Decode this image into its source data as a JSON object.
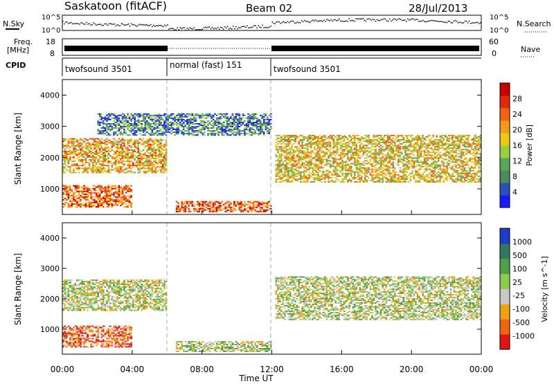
{
  "header": {
    "station": "Saskatoon (fitACF)",
    "beam": "Beam 02",
    "date": "28/Jul/2013"
  },
  "top_panels": {
    "nsky_label": "N.Sky",
    "nsearch_label": "N.Search",
    "noise_ticks_left": [
      "10^5",
      "10^0"
    ],
    "noise_ticks_right": [
      "10^5",
      "10^0"
    ],
    "freq_label_line1": "Freq.",
    "freq_label_line2": "[MHz]",
    "freq_ticks": [
      "18",
      "8"
    ],
    "nave_label": "Nave",
    "nave_ticks": [
      "60",
      "0"
    ],
    "cpid_label": "CPID",
    "cpid_segments": [
      {
        "label": "twofsound 3501",
        "start_h": 0,
        "end_h": 6
      },
      {
        "label": "normal (fast) 151",
        "start_h": 6,
        "end_h": 12
      },
      {
        "label": "twofsound 3501",
        "start_h": 12,
        "end_h": 24
      }
    ]
  },
  "chart_data": [
    {
      "type": "heatmap",
      "name": "power",
      "ylabel": "Slant Range [km]",
      "ylim": [
        180,
        4500
      ],
      "xlim": [
        0,
        24
      ],
      "yticks": [
        "1000",
        "2000",
        "3000",
        "4000"
      ],
      "colorbar_label": "Power [dB]",
      "colorbar_ticks": [
        "4",
        "8",
        "12",
        "16",
        "20",
        "24",
        "28"
      ],
      "colorbar_colors": [
        "#1a1aff",
        "#2b4fb8",
        "#4d8a5e",
        "#59a85a",
        "#9ccf3c",
        "#f0c814",
        "#f59a1a",
        "#f06414",
        "#e02a0a",
        "#c80000"
      ],
      "echo_bands": [
        {
          "t0": 0,
          "t1": 6,
          "r0": 1500,
          "r1": 2600,
          "level": 0.6
        },
        {
          "t0": 0,
          "t1": 4,
          "r0": 400,
          "r1": 1100,
          "level": 0.75
        },
        {
          "t0": 12.2,
          "t1": 24,
          "r0": 1200,
          "r1": 2700,
          "level": 0.55
        },
        {
          "t0": 6.5,
          "t1": 12,
          "r0": 250,
          "r1": 600,
          "level": 0.8
        },
        {
          "t0": 2,
          "t1": 12,
          "r0": 2700,
          "r1": 3400,
          "level": 0.25
        }
      ]
    },
    {
      "type": "heatmap",
      "name": "velocity",
      "ylabel": "Slant Range [km]",
      "ylim": [
        180,
        4500
      ],
      "xlim": [
        0,
        24
      ],
      "yticks": [
        "1000",
        "2000",
        "3000",
        "4000"
      ],
      "colorbar_label": "Velocity [m s^-1]",
      "colorbar_ticks": [
        "1000",
        "500",
        "100",
        "25",
        "-25",
        "-100",
        "-500",
        "-1000"
      ],
      "colorbar_colors": [
        "#1e3cc8",
        "#2e7a5a",
        "#4ea04a",
        "#8ccc4a",
        "#c8c8c8",
        "#f0a014",
        "#f06414",
        "#e01414"
      ],
      "echo_bands": [
        {
          "t0": 0,
          "t1": 6,
          "r0": 1600,
          "r1": 2600,
          "level": 0.5
        },
        {
          "t0": 0,
          "t1": 4,
          "r0": 400,
          "r1": 1100,
          "level": 0.8
        },
        {
          "t0": 12.2,
          "t1": 24,
          "r0": 1300,
          "r1": 2700,
          "level": 0.5
        },
        {
          "t0": 6.5,
          "t1": 12,
          "r0": 250,
          "r1": 600,
          "level": 0.5
        }
      ]
    }
  ],
  "x_axis": {
    "ticks": [
      "00:00",
      "04:00",
      "08:00",
      "12:00",
      "16:00",
      "20:00",
      "00:00"
    ],
    "label": "Time UT"
  }
}
